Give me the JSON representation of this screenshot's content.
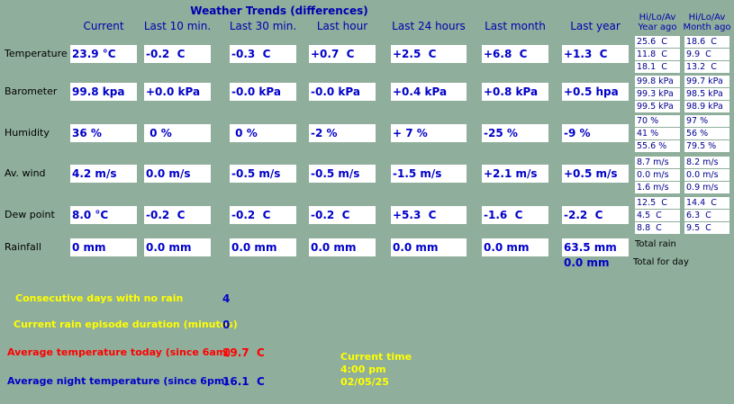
{
  "header": {
    "title": "Weather Trends (differences)",
    "columns": [
      "Current",
      "Last 10 min.",
      "Last 30 min.",
      "Last hour",
      "Last 24 hours",
      "Last month",
      "Last year"
    ],
    "year_ago_header": [
      "Hi/Lo/Av",
      "Year ago"
    ],
    "month_ago_header": [
      "Hi/Lo/Av",
      "Month ago"
    ]
  },
  "rows": [
    {
      "label": "Temperature",
      "cells": [
        "23.9 °C",
        "-0.2  C",
        "-0.3  C",
        "+0.7  C",
        "+2.5  C",
        "+6.8  C",
        "+1.3  C"
      ],
      "year_ago": [
        "25.6  C",
        "11.8  C",
        "18.1  C"
      ],
      "month_ago": [
        "18.6  C",
        "9.9  C",
        "13.2  C"
      ]
    },
    {
      "label": "Barometer",
      "cells": [
        "99.8 kpa",
        "+0.0 kPa",
        "-0.0 kPa",
        "-0.0 kPa",
        "+0.4 kPa",
        "+0.8 kPa",
        "+0.5 hpa"
      ],
      "year_ago": [
        "99.8 kPa",
        "99.3 kPa",
        "99.5 kPa"
      ],
      "month_ago": [
        "99.7 kPa",
        "98.5 kPa",
        "98.9 kPa"
      ]
    },
    {
      "label": "Humidity",
      "cells": [
        "36 %",
        " 0 %",
        " 0 %",
        "-2 %",
        "+ 7 %",
        "-25 %",
        "-9 %"
      ],
      "year_ago": [
        "70 %",
        "41 %",
        "55.6 %"
      ],
      "month_ago": [
        "97 %",
        "56 %",
        "79.5 %"
      ]
    },
    {
      "label": "Av. wind",
      "cells": [
        "4.2 m/s",
        "0.0 m/s",
        "-0.5 m/s",
        "-0.5 m/s",
        "-1.5 m/s",
        "+2.1 m/s",
        "+0.5 m/s"
      ],
      "year_ago": [
        "8.7 m/s",
        "0.0 m/s",
        "1.6 m/s"
      ],
      "month_ago": [
        "8.2 m/s",
        "0.0 m/s",
        "0.9 m/s"
      ]
    },
    {
      "label": "Dew point",
      "cells": [
        "8.0 °C",
        "-0.2  C",
        "-0.2  C",
        "-0.2  C",
        "+5.3  C",
        "-1.6  C",
        "-2.2  C"
      ],
      "year_ago": [
        "12.5  C",
        "4.5  C",
        "8.8  C"
      ],
      "month_ago": [
        "14.4  C",
        "6.3  C",
        "9.5  C"
      ]
    },
    {
      "label": "Rainfall",
      "cells": [
        "0 mm",
        "0.0 mm",
        "0.0 mm",
        "0.0 mm",
        "0.0 mm",
        "0.0 mm",
        "63.5 mm"
      ]
    }
  ],
  "rainfall_extra": {
    "total_rain_label": "Total rain",
    "day_value": "0.0 mm",
    "day_label": "Total for day"
  },
  "stats": [
    {
      "label": "Consecutive days with no rain",
      "value": "4"
    },
    {
      "label": "Current rain episode duration (minutes)",
      "value": "0"
    },
    {
      "label": "Average temperature today (since 6am)",
      "value": "19.7  C"
    },
    {
      "label": "Average night temperature (since 6pm)",
      "value": "16.1  C"
    }
  ],
  "time": {
    "label": "Current time",
    "time": "4:00 pm",
    "date": "02/05/25"
  }
}
